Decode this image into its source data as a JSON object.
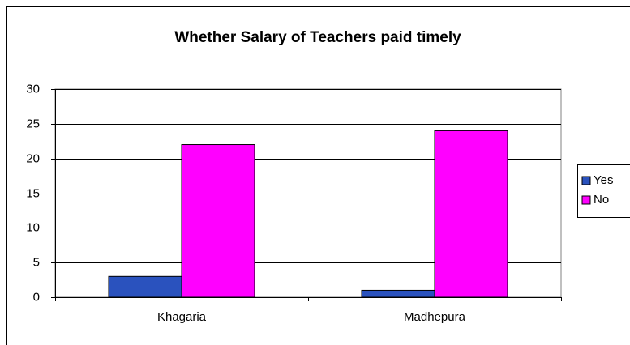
{
  "chart_data": {
    "type": "bar",
    "title": "Whether Salary of Teachers paid timely",
    "categories": [
      "Khagaria",
      "Madhepura"
    ],
    "series": [
      {
        "name": "Yes",
        "color": "#2a52be",
        "values": [
          3,
          1
        ]
      },
      {
        "name": "No",
        "color": "#ff00ff",
        "values": [
          22,
          24
        ]
      }
    ],
    "ylim": [
      0,
      30
    ],
    "yticks": [
      0,
      5,
      10,
      15,
      20,
      25,
      30
    ],
    "grid": true,
    "legend": "right"
  }
}
